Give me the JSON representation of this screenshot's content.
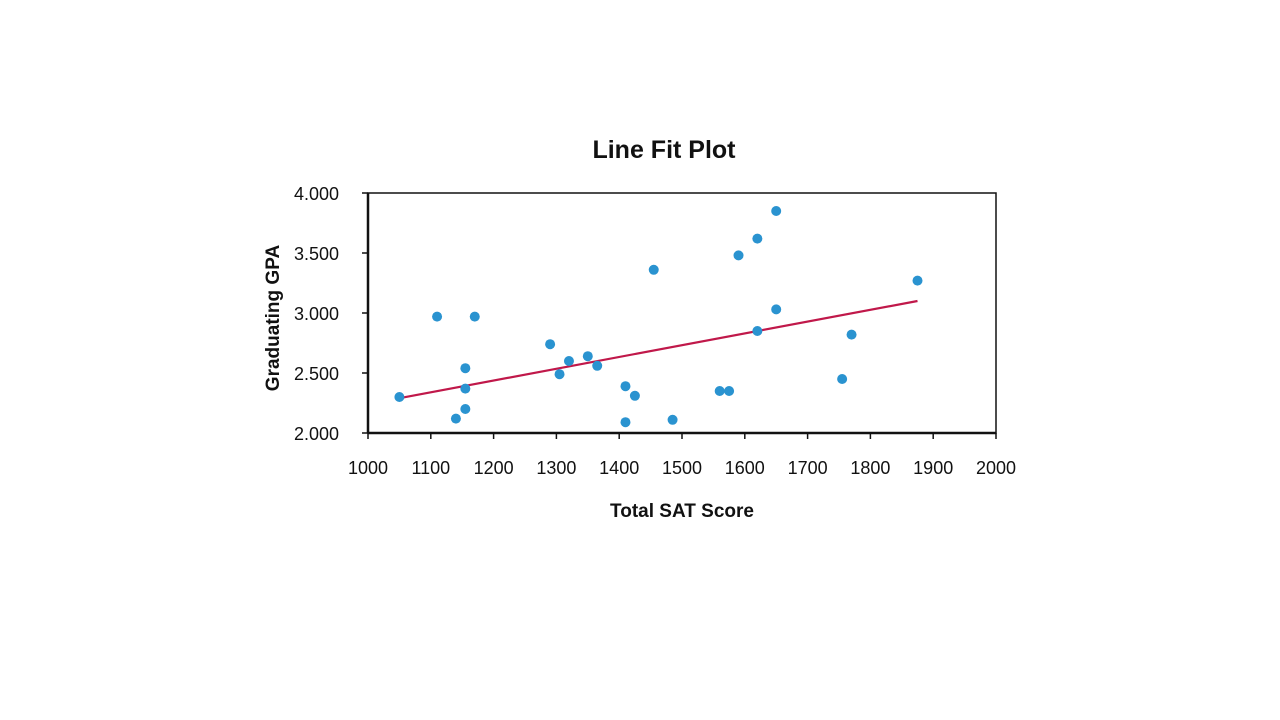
{
  "chart_data": {
    "type": "scatter",
    "title": "Line Fit Plot",
    "xlabel": "Total SAT Score",
    "ylabel": "Graduating GPA",
    "xlim": [
      1000,
      2000
    ],
    "ylim": [
      2.0,
      4.0
    ],
    "x_ticks": [
      "1000",
      "1100",
      "1200",
      "1300",
      "1400",
      "1500",
      "1600",
      "1700",
      "1800",
      "1900",
      "2000"
    ],
    "y_ticks": [
      "2.000",
      "2.500",
      "3.000",
      "3.500",
      "4.000"
    ],
    "grid": false,
    "legend": "none",
    "series": [
      {
        "kind": "points",
        "color": "#2a93d0",
        "points": [
          [
            1050,
            2.3
          ],
          [
            1110,
            2.97
          ],
          [
            1140,
            2.12
          ],
          [
            1155,
            2.2
          ],
          [
            1155,
            2.37
          ],
          [
            1155,
            2.54
          ],
          [
            1170,
            2.97
          ],
          [
            1290,
            2.74
          ],
          [
            1305,
            2.49
          ],
          [
            1320,
            2.6
          ],
          [
            1350,
            2.64
          ],
          [
            1365,
            2.56
          ],
          [
            1410,
            2.39
          ],
          [
            1410,
            2.09
          ],
          [
            1425,
            2.31
          ],
          [
            1455,
            3.36
          ],
          [
            1485,
            2.11
          ],
          [
            1560,
            2.35
          ],
          [
            1575,
            2.35
          ],
          [
            1590,
            3.48
          ],
          [
            1620,
            3.62
          ],
          [
            1620,
            2.85
          ],
          [
            1650,
            3.85
          ],
          [
            1650,
            3.03
          ],
          [
            1755,
            2.45
          ],
          [
            1770,
            2.82
          ],
          [
            1875,
            3.27
          ]
        ]
      },
      {
        "kind": "fit-line",
        "color": "#c0184a",
        "points": [
          [
            1050,
            2.29
          ],
          [
            1875,
            3.1
          ]
        ]
      }
    ]
  }
}
